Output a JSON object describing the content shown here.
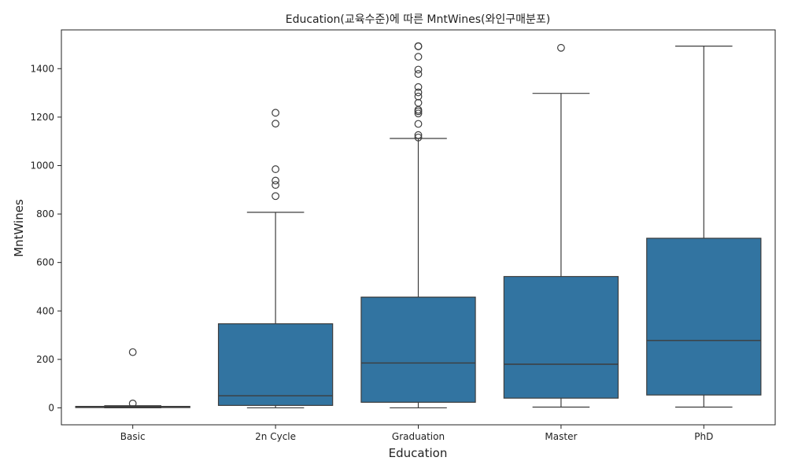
{
  "chart_data": {
    "type": "box",
    "title": "Education(교육수준)에 따른 MntWines(와인구매분포)",
    "xlabel": "Education",
    "ylabel": "MntWines",
    "ylim": [
      -70,
      1560
    ],
    "yticks": [
      0,
      200,
      400,
      600,
      800,
      1000,
      1200,
      1400
    ],
    "grid": false,
    "color": "#3274a1",
    "categories": [
      "Basic",
      "2n Cycle",
      "Graduation",
      "Master",
      "PhD"
    ],
    "boxes": [
      {
        "category": "Basic",
        "whislo": 0,
        "q1": 2,
        "median": 3,
        "q3": 6,
        "whishi": 9,
        "fliers": [
          230,
          18
        ]
      },
      {
        "category": "2n Cycle",
        "whislo": 0,
        "q1": 10,
        "median": 50,
        "q3": 347,
        "whishi": 807,
        "fliers": [
          1218,
          1173,
          985,
          938,
          920,
          874
        ]
      },
      {
        "category": "Graduation",
        "whislo": 0,
        "q1": 23,
        "median": 185,
        "q3": 457,
        "whishi": 1112,
        "fliers": [
          1493,
          1492,
          1449,
          1396,
          1378,
          1324,
          1302,
          1285,
          1259,
          1230,
          1224,
          1215,
          1172,
          1126,
          1116
        ]
      },
      {
        "category": "Master",
        "whislo": 3,
        "q1": 40,
        "median": 180,
        "q3": 542,
        "whishi": 1298,
        "fliers": [
          1486
        ]
      },
      {
        "category": "PhD",
        "whislo": 3,
        "q1": 53,
        "median": 278,
        "q3": 700,
        "whishi": 1493,
        "fliers": []
      }
    ]
  }
}
